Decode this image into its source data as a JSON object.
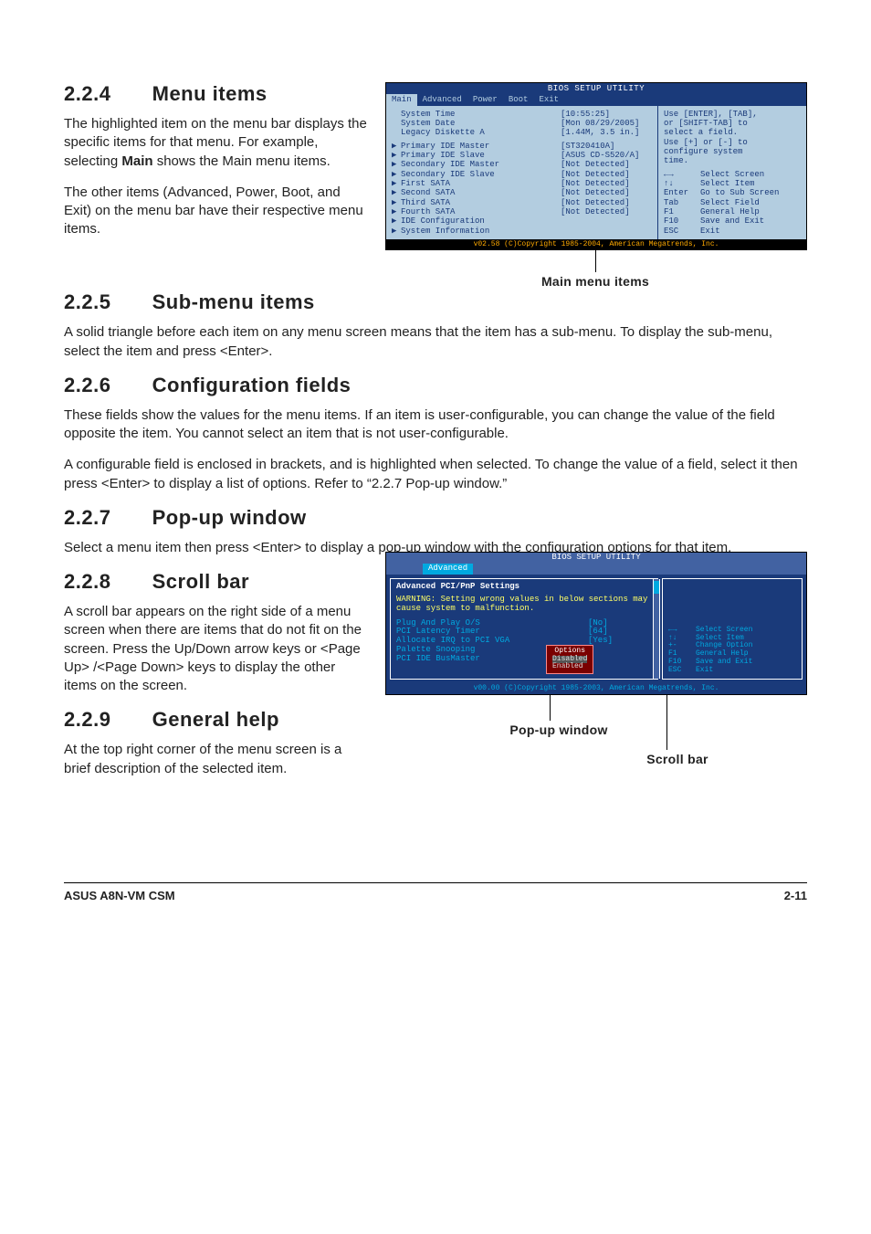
{
  "sections": {
    "s224": {
      "number": "2.2.4",
      "title": "Menu items",
      "paras": [
        "The highlighted item on the menu bar  displays the specific items for that menu. For example, selecting ",
        " shows the Main menu items.",
        "The other items (Advanced, Power, Boot, and Exit) on the menu bar have their respective menu items."
      ],
      "bold_word": "Main"
    },
    "s225": {
      "number": "2.2.5",
      "title": "Sub-menu items",
      "para": "A solid triangle before each item on any menu screen means that the item has a sub-menu. To display the sub-menu, select the item and press <Enter>."
    },
    "s226": {
      "number": "2.2.6",
      "title": "Configuration fields",
      "paras": [
        "These fields show the values for the menu items. If an item is user-configurable, you can change the value of the field opposite the item. You cannot select an item that is not user-configurable.",
        "A configurable field is enclosed in brackets, and is highlighted when selected. To change the value of a field, select it then press <Enter> to display a list of options. Refer to “2.2.7 Pop-up window.”"
      ]
    },
    "s227": {
      "number": "2.2.7",
      "title": "Pop-up window",
      "para": "Select a menu item then press <Enter> to display a pop-up window with the configuration options for that item."
    },
    "s228": {
      "number": "2.2.8",
      "title": "Scroll bar",
      "para": "A scroll bar appears on the right side of a menu screen when there are items that do not fit on the screen. Press the Up/Down arrow keys or <Page Up> /<Page Down> keys to display the other items on the screen."
    },
    "s229": {
      "number": "2.2.9",
      "title": "General help",
      "para": "At the top right corner of the menu screen is a brief description of the selected item."
    }
  },
  "bios1": {
    "title": "BIOS SETUP UTILITY",
    "tabs": [
      "Main",
      "Advanced",
      "Power",
      "Boot",
      "Exit"
    ],
    "active_tab": "Main",
    "rows": [
      {
        "arrow": "",
        "label": "System Time",
        "value": "[10:55:25]"
      },
      {
        "arrow": "",
        "label": "System Date",
        "value": "[Mon 08/29/2005]"
      },
      {
        "arrow": "",
        "label": "Legacy Diskette A",
        "value": "[1.44M, 3.5 in.]"
      },
      {
        "arrow": "▶",
        "label": "Primary IDE Master",
        "value": "[ST320410A]"
      },
      {
        "arrow": "▶",
        "label": "Primary IDE Slave",
        "value": "[ASUS CD-S520/A]"
      },
      {
        "arrow": "▶",
        "label": "Secondary IDE Master",
        "value": "[Not Detected]"
      },
      {
        "arrow": "▶",
        "label": "Secondary IDE Slave",
        "value": "[Not Detected]"
      },
      {
        "arrow": "▶",
        "label": "First SATA",
        "value": "[Not Detected]"
      },
      {
        "arrow": "▶",
        "label": "Second SATA",
        "value": "[Not Detected]"
      },
      {
        "arrow": "▶",
        "label": "Third SATA",
        "value": "[Not Detected]"
      },
      {
        "arrow": "▶",
        "label": "Fourth SATA",
        "value": "[Not Detected]"
      },
      {
        "arrow": "▶",
        "label": "IDE Configuration",
        "value": ""
      },
      {
        "arrow": "▶",
        "label": "System Information",
        "value": ""
      }
    ],
    "help_top": [
      "Use [ENTER], [TAB],",
      "or [SHIFT-TAB] to",
      "select a field.",
      "",
      "Use  [+] or [-] to",
      "configure system",
      "time."
    ],
    "help_keys": [
      {
        "k": "←→",
        "d": "Select Screen"
      },
      {
        "k": "↑↓",
        "d": "Select Item"
      },
      {
        "k": "Enter",
        "d": "Go to Sub Screen"
      },
      {
        "k": "Tab",
        "d": "Select Field"
      },
      {
        "k": "F1",
        "d": "General Help"
      },
      {
        "k": "F10",
        "d": "Save and Exit"
      },
      {
        "k": "ESC",
        "d": "Exit"
      }
    ],
    "footer": "v02.58 (C)Copyright 1985-2004, American Megatrends, Inc.",
    "caption": "Main menu items"
  },
  "bios2": {
    "title": "BIOS SETUP UTILITY",
    "tabs": [
      "Advanced"
    ],
    "heading": "Advanced PCI/PnP Settings",
    "warning": "WARNING: Setting wrong values in below sections may cause system to malfunction.",
    "rows": [
      {
        "label": "Plug And Play O/S",
        "value": "[No]"
      },
      {
        "label": "PCI Latency Timer",
        "value": "[64]"
      },
      {
        "label": "Allocate IRQ to PCI VGA",
        "value": "[Yes]"
      },
      {
        "label": "Palette Snooping",
        "value": ""
      },
      {
        "label": "PCI IDE BusMaster",
        "value": ""
      }
    ],
    "popup": {
      "title": "Options",
      "options": [
        "Disabled",
        "Enabled"
      ]
    },
    "help_keys": [
      {
        "k": "←→",
        "d": "Select Screen"
      },
      {
        "k": "↑↓",
        "d": "Select Item"
      },
      {
        "k": "+-",
        "d": "Change Option"
      },
      {
        "k": "F1",
        "d": "General Help"
      },
      {
        "k": "F10",
        "d": "Save and Exit"
      },
      {
        "k": "ESC",
        "d": "Exit"
      }
    ],
    "footer": "v00.00 (C)Copyright 1985-2003, American Megatrends, Inc.",
    "captions": {
      "popup": "Pop-up window",
      "scrollbar": "Scroll bar"
    }
  },
  "footer": {
    "left": "ASUS A8N-VM CSM",
    "right": "2-11"
  }
}
